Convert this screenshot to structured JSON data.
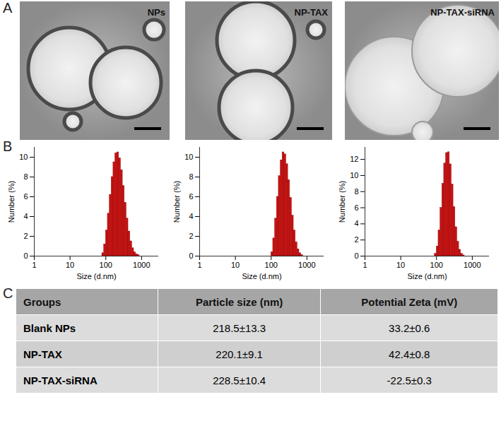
{
  "panel_labels": [
    "A",
    "B",
    "C"
  ],
  "images": [
    {
      "label": "NPs"
    },
    {
      "label": "NP-TAX"
    },
    {
      "label": "NP-TAX-siRNA"
    }
  ],
  "chart_data": [
    {
      "type": "histogram",
      "xlabel": "Size (d.nm)",
      "ylabel": "Number (%)",
      "log": "x",
      "color": "#cc1111",
      "bins": [
        78.8,
        88.9,
        100.3,
        113.1,
        127.6,
        143.9,
        162.3,
        183.1,
        206.5,
        232.9,
        262.7,
        296.3,
        334.2,
        377.0,
        425.3,
        479.7,
        541.1,
        610.4,
        688.5,
        776.6,
        876.0
      ],
      "values": [
        0.3,
        1.2,
        2.6,
        4.3,
        6.2,
        8.0,
        9.5,
        10.4,
        10.5,
        9.9,
        8.7,
        7.1,
        5.4,
        3.8,
        2.5,
        1.5,
        0.8,
        0.4,
        0.2,
        0.1
      ],
      "xlim": [
        1,
        3000
      ],
      "xticks": [
        1,
        10,
        100,
        1000
      ],
      "ylim": [
        0,
        11
      ],
      "yticks": [
        0,
        2,
        4,
        6,
        8,
        10
      ],
      "grid": false
    },
    {
      "type": "histogram",
      "xlabel": "Size (d.nm)",
      "ylabel": "Number (%)",
      "log": "x",
      "color": "#cc1111",
      "bins": [
        78.8,
        88.9,
        100.3,
        113.1,
        127.6,
        143.9,
        162.3,
        183.1,
        206.5,
        232.9,
        262.7,
        296.3,
        334.2,
        377.0,
        425.3,
        479.7,
        541.1,
        610.4,
        688.5,
        776.6,
        876.0
      ],
      "values": [
        0,
        0,
        0.4,
        1.8,
        3.8,
        6.0,
        8.1,
        9.7,
        10.5,
        10.3,
        9.3,
        7.7,
        5.9,
        4.1,
        2.6,
        1.4,
        0.7,
        0.3,
        0.1,
        0
      ],
      "xlim": [
        1,
        3000
      ],
      "xticks": [
        1,
        10,
        100,
        1000
      ],
      "ylim": [
        0,
        11
      ],
      "yticks": [
        0,
        2,
        4,
        6,
        8,
        10
      ],
      "grid": false
    },
    {
      "type": "histogram",
      "xlabel": "Size (d.nm)",
      "ylabel": "Number (%)",
      "log": "x",
      "color": "#cc1111",
      "bins": [
        78.8,
        88.9,
        100.3,
        113.1,
        127.6,
        143.9,
        162.3,
        183.1,
        206.5,
        232.9,
        262.7,
        296.3,
        334.2,
        377.0,
        425.3,
        479.7,
        541.1,
        610.4,
        688.5,
        776.6,
        876.0
      ],
      "values": [
        0,
        0.3,
        1.2,
        3.2,
        6.0,
        9.0,
        11.5,
        12.8,
        12.9,
        11.4,
        8.9,
        6.1,
        3.6,
        1.8,
        0.8,
        0.3,
        0.1,
        0,
        0,
        0
      ],
      "xlim": [
        1,
        3000
      ],
      "xticks": [
        1,
        10,
        100,
        1000
      ],
      "ylim": [
        0,
        13.5
      ],
      "yticks": [
        0,
        2,
        4,
        6,
        8,
        10,
        12
      ],
      "grid": false
    }
  ],
  "table": {
    "header": [
      "Groups",
      "Particle size (nm)",
      "Potential Zeta (mV)"
    ],
    "rows": [
      [
        "Blank NPs",
        "218.5±13.3",
        "33.2±0.6"
      ],
      [
        "NP-TAX",
        "220.1±9.1",
        "42.4±0.8"
      ],
      [
        "NP-TAX-siRNA",
        "228.5±10.4",
        "-22.5±0.3"
      ]
    ]
  }
}
